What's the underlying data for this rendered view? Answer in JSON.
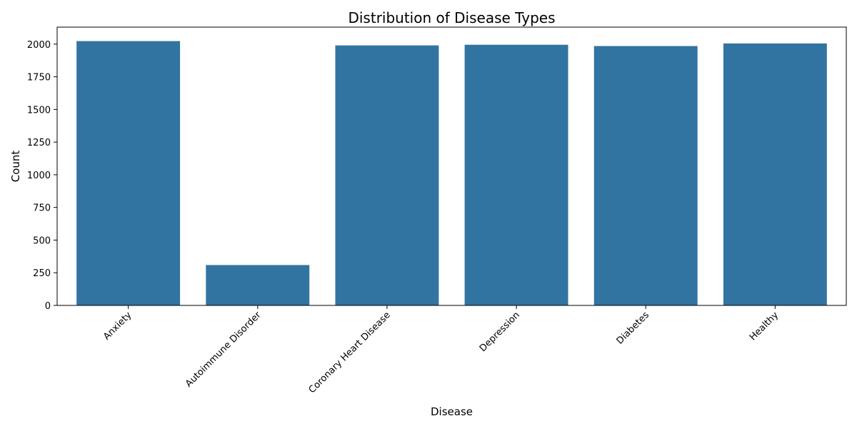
{
  "chart_data": {
    "type": "bar",
    "title": "Distribution of Disease Types",
    "xlabel": "Disease",
    "ylabel": "Count",
    "categories": [
      "Anxiety",
      "Autoimmune Disorder",
      "Coronary Heart Disease",
      "Depression",
      "Diabetes",
      "Healthy"
    ],
    "values": [
      2023,
      309,
      1990,
      1995,
      1985,
      2005
    ],
    "ylim": [
      0,
      2130
    ],
    "yticks": [
      0,
      250,
      500,
      750,
      1000,
      1250,
      1500,
      1750,
      2000
    ],
    "ytick_labels": [
      "0",
      "250",
      "500",
      "750",
      "1000",
      "1250",
      "1500",
      "1750",
      "2000"
    ],
    "xtick_rotation_deg": 45,
    "grid": false,
    "legend": "none",
    "bar_color": "#3274a1"
  }
}
